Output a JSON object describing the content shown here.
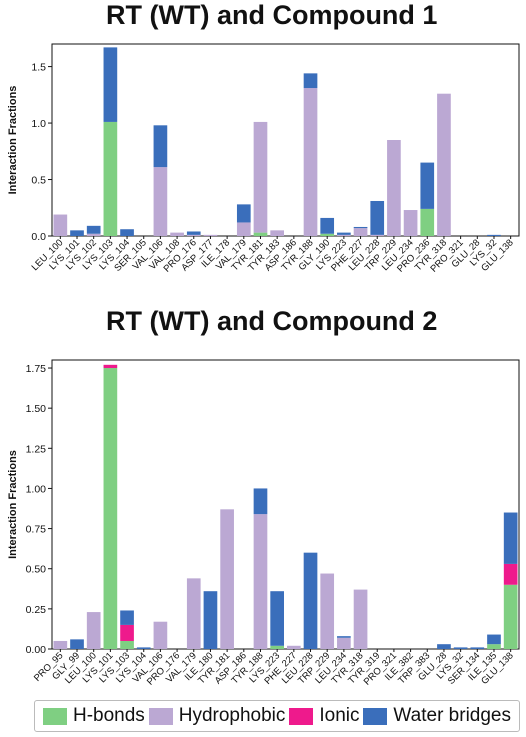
{
  "colors": {
    "hbonds": "#7fcf82",
    "hydrophobic": "#bba8d3",
    "ionic": "#ee1a8c",
    "water": "#3a6ebb"
  },
  "legend": {
    "items": [
      {
        "key": "hbonds",
        "label": "H-bonds"
      },
      {
        "key": "hydrophobic",
        "label": "Hydrophobic"
      },
      {
        "key": "ionic",
        "label": "Ionic"
      },
      {
        "key": "water",
        "label": "Water bridges"
      }
    ]
  },
  "chart_data": [
    {
      "type": "bar",
      "stacked": true,
      "title": "RT (WT) and Compound 1",
      "ylabel": "Interaction Fractions",
      "ylim": [
        0,
        1.7
      ],
      "yticks": [
        "0.0",
        "0.5",
        "1.0",
        "1.5"
      ],
      "yticks_values": [
        0,
        0.5,
        1.0,
        1.5
      ],
      "categories": [
        "LEU_100",
        "LYS_101",
        "LYS_102",
        "LYS_103",
        "LYS_104",
        "SER_105",
        "VAL_106",
        "VAL_108",
        "PRO_176",
        "ASP_177",
        "ILE_178",
        "VAL_179",
        "TYR_181",
        "TYR_183",
        "ASP_186",
        "TYR_188",
        "GLY_190",
        "LYS_223",
        "PHE_227",
        "LEU_228",
        "TRP_229",
        "LEU_234",
        "PRO_236",
        "TYR_318",
        "PRO_321",
        "GLU_28",
        "LYS_32",
        "GLU_138"
      ],
      "series": [
        {
          "name": "H-bonds",
          "key": "hbonds",
          "values": [
            0,
            0,
            0,
            1.01,
            0,
            0,
            0,
            0,
            0,
            0,
            0,
            0,
            0.03,
            0,
            0,
            0,
            0.02,
            0,
            0,
            0,
            0,
            0,
            0.24,
            0,
            0,
            0,
            0,
            0
          ]
        },
        {
          "name": "Hydrophobic",
          "key": "hydrophobic",
          "values": [
            0.19,
            0,
            0.02,
            0,
            0,
            0,
            0.61,
            0.03,
            0.01,
            0.01,
            0,
            0.12,
            0.98,
            0.05,
            0,
            1.31,
            0,
            0.01,
            0.07,
            0.01,
            0.85,
            0.23,
            0,
            1.26,
            0,
            0,
            0,
            0
          ]
        },
        {
          "name": "Ionic",
          "key": "ionic",
          "values": [
            0,
            0,
            0,
            0,
            0,
            0,
            0,
            0,
            0,
            0,
            0,
            0,
            0,
            0,
            0,
            0,
            0,
            0,
            0,
            0,
            0,
            0,
            0,
            0,
            0,
            0,
            0,
            0
          ]
        },
        {
          "name": "Water bridges",
          "key": "water",
          "values": [
            0,
            0.05,
            0.07,
            0.66,
            0.06,
            0,
            0.37,
            0,
            0.03,
            0,
            0,
            0.16,
            0,
            0,
            0,
            0.13,
            0.14,
            0.02,
            0.01,
            0.3,
            0,
            0,
            0.41,
            0,
            0,
            0,
            0.01,
            0
          ]
        }
      ]
    },
    {
      "type": "bar",
      "stacked": true,
      "title": "RT (WT) and Compound 2",
      "ylabel": "Interaction Fractions",
      "ylim": [
        0,
        1.8
      ],
      "yticks": [
        "0.00",
        "0.25",
        "0.50",
        "0.75",
        "1.00",
        "1.25",
        "1.50",
        "1.75"
      ],
      "yticks_values": [
        0,
        0.25,
        0.5,
        0.75,
        1.0,
        1.25,
        1.5,
        1.75
      ],
      "categories": [
        "PRO_95",
        "GLY_99",
        "LEU_100",
        "LYS_101",
        "LYS_103",
        "LYS_104",
        "VAL_106",
        "PRO_176",
        "VAL_179",
        "ILE_180",
        "TYR_181",
        "ASP_186",
        "TYR_188",
        "LYS_223",
        "PHE_227",
        "LEU_228",
        "TRP_229",
        "LEU_234",
        "TYR_318",
        "TYR_319",
        "PRO_321",
        "ILE_382",
        "TRP_383",
        "GLU_28",
        "LYS_32",
        "SER_134",
        "ILE_135",
        "GLU_138"
      ],
      "series": [
        {
          "name": "H-bonds",
          "key": "hbonds",
          "values": [
            0,
            0,
            0,
            1.75,
            0.05,
            0,
            0,
            0,
            0,
            0,
            0,
            0,
            0,
            0.02,
            0,
            0,
            0,
            0,
            0,
            0,
            0,
            0,
            0,
            0,
            0,
            0,
            0.03,
            0.4
          ]
        },
        {
          "name": "Hydrophobic",
          "key": "hydrophobic",
          "values": [
            0.05,
            0,
            0.23,
            0,
            0,
            0,
            0.17,
            0,
            0.44,
            0,
            0.87,
            0,
            0.84,
            0,
            0.02,
            0,
            0.47,
            0.07,
            0.37,
            0,
            0,
            0,
            0,
            0,
            0,
            0,
            0,
            0
          ]
        },
        {
          "name": "Ionic",
          "key": "ionic",
          "values": [
            0,
            0,
            0,
            0.02,
            0.1,
            0,
            0,
            0,
            0,
            0,
            0,
            0,
            0,
            0,
            0,
            0,
            0,
            0,
            0,
            0,
            0,
            0,
            0,
            0,
            0,
            0,
            0,
            0.13
          ]
        },
        {
          "name": "Water bridges",
          "key": "water",
          "values": [
            0,
            0.06,
            0,
            0,
            0.09,
            0.01,
            0,
            0,
            0,
            0.36,
            0,
            0,
            0.16,
            0.34,
            0,
            0.6,
            0,
            0.01,
            0,
            0,
            0,
            0,
            0,
            0.03,
            0.01,
            0.01,
            0.06,
            0.32
          ]
        }
      ]
    }
  ]
}
